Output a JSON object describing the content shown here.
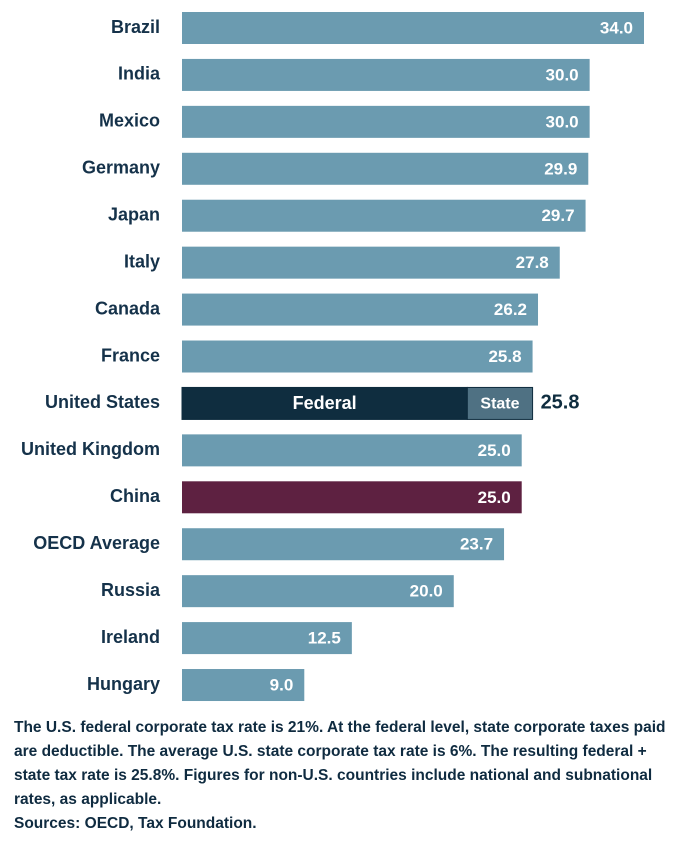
{
  "chart_data": {
    "type": "bar",
    "orientation": "horizontal",
    "categories": [
      "Brazil",
      "India",
      "Mexico",
      "Germany",
      "Japan",
      "Italy",
      "Canada",
      "France",
      "United States",
      "United Kingdom",
      "China",
      "OECD Average",
      "Russia",
      "Ireland",
      "Hungary"
    ],
    "values": [
      34.0,
      30.0,
      30.0,
      29.9,
      29.7,
      27.8,
      26.2,
      25.8,
      25.8,
      25.0,
      25.0,
      23.7,
      20.0,
      12.5,
      9.0
    ],
    "value_labels": [
      "34.0",
      "30.0",
      "30.0",
      "29.9",
      "29.7",
      "27.8",
      "26.2",
      "25.8",
      "25.8",
      "25.0",
      "25.0",
      "23.7",
      "20.0",
      "12.5",
      "9.0"
    ],
    "colors": [
      "#6b9bb0",
      "#6b9bb0",
      "#6b9bb0",
      "#6b9bb0",
      "#6b9bb0",
      "#6b9bb0",
      "#6b9bb0",
      "#6b9bb0",
      "#0f2d3f",
      "#6b9bb0",
      "#5e2141",
      "#6b9bb0",
      "#6b9bb0",
      "#6b9bb0",
      "#6b9bb0"
    ],
    "breakdown": [
      null,
      null,
      null,
      null,
      null,
      null,
      null,
      null,
      [
        {
          "name": "Federal",
          "value": 21,
          "color": "#0f2d3f"
        },
        {
          "name": "State",
          "value": 4.8,
          "color": "#4f7183"
        }
      ],
      null,
      null,
      null,
      null,
      null,
      null
    ],
    "xlim": [
      0,
      34
    ],
    "note": "The U.S. federal corporate tax rate is 21%. At the federal level, state corporate taxes paid are deductible. The average U.S. state corporate tax rate is 6%. The resulting federal + state tax rate is 25.8%. Figures for non-U.S. countries include national and subnational rates, as applicable.",
    "source": "Sources: OECD, Tax Foundation."
  }
}
